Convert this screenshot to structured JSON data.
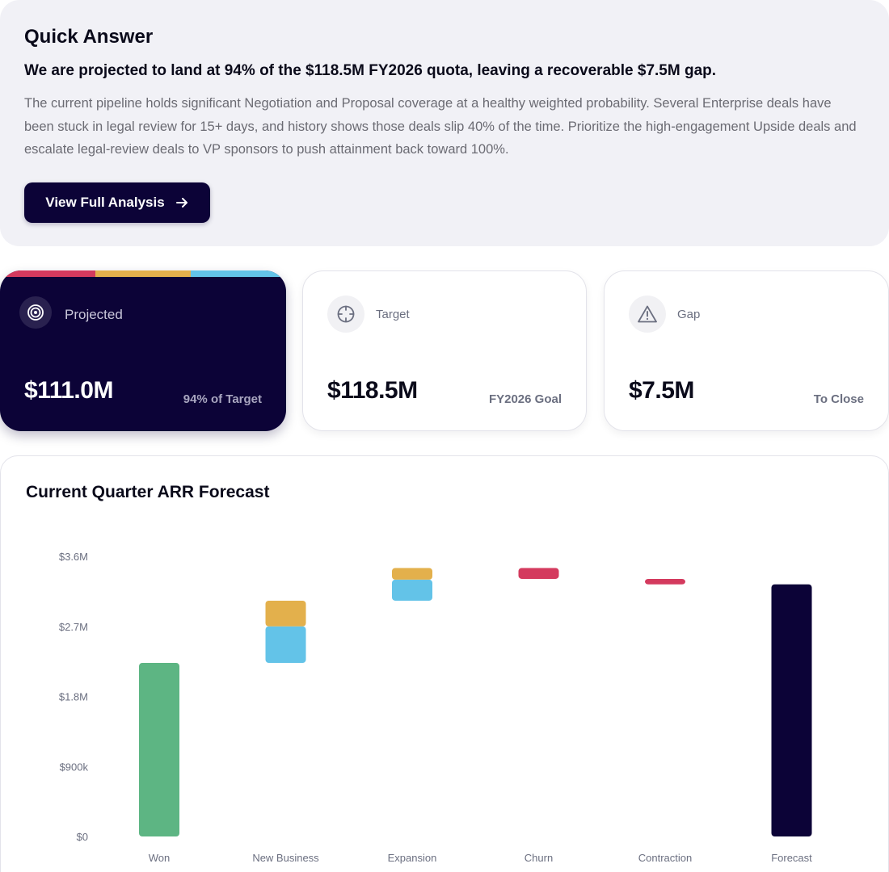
{
  "quick_answer": {
    "title": "Quick Answer",
    "headline": "We are projected to land at 94% of the $118.5M FY2026 quota, leaving a recoverable $7.5M gap.",
    "body": "The current pipeline holds significant Negotiation and Proposal coverage at a healthy weighted probability. Several Enterprise deals have been stuck in legal review for 15+ days, and history shows those deals slip 40% of the time. Prioritize the high-engagement Upside deals and escalate legal-review deals to VP sponsors to push attainment back toward 100%.",
    "button_label": "View Full Analysis",
    "button_icon": "arrow-right-icon"
  },
  "cards": {
    "projected": {
      "label": "Projected",
      "value": "$111.0M",
      "sub": "94% of Target",
      "icon": "target-icon"
    },
    "target": {
      "label": "Target",
      "value": "$118.5M",
      "sub": "FY2026 Goal",
      "icon": "crosshair-icon"
    },
    "gap": {
      "label": "Gap",
      "value": "$7.5M",
      "sub": "To Close",
      "icon": "warning-icon"
    }
  },
  "colors": {
    "navy": "#0c0337",
    "green": "#5db583",
    "blue": "#63c3e8",
    "amber": "#e3b04c",
    "red": "#d43a5e"
  },
  "chart_data": {
    "type": "bar",
    "subtype": "waterfall",
    "title": "Current Quarter ARR Forecast",
    "categories": [
      "Won",
      "New Business",
      "Expansion",
      "Churn",
      "Contraction",
      "Forecast"
    ],
    "y_ticks": [
      "$0",
      "$900k",
      "$1.8M",
      "$2.7M",
      "$3.6M"
    ],
    "ylim": [
      0,
      3600000
    ],
    "grid": false,
    "bars": [
      {
        "category": "Won",
        "segments": [
          {
            "from": 0,
            "to": 2230000,
            "color": "#5db583"
          }
        ]
      },
      {
        "category": "New Business",
        "segments": [
          {
            "from": 2230000,
            "to": 2700000,
            "color": "#63c3e8"
          },
          {
            "from": 2700000,
            "to": 3030000,
            "color": "#e3b04c"
          }
        ]
      },
      {
        "category": "Expansion",
        "segments": [
          {
            "from": 3030000,
            "to": 3300000,
            "color": "#63c3e8"
          },
          {
            "from": 3300000,
            "to": 3450000,
            "color": "#e3b04c"
          }
        ]
      },
      {
        "category": "Churn",
        "segments": [
          {
            "from": 3310000,
            "to": 3450000,
            "color": "#d43a5e"
          }
        ]
      },
      {
        "category": "Contraction",
        "segments": [
          {
            "from": 3240000,
            "to": 3310000,
            "color": "#d43a5e"
          }
        ]
      },
      {
        "category": "Forecast",
        "segments": [
          {
            "from": 0,
            "to": 3240000,
            "color": "#0c0337"
          }
        ]
      }
    ]
  }
}
